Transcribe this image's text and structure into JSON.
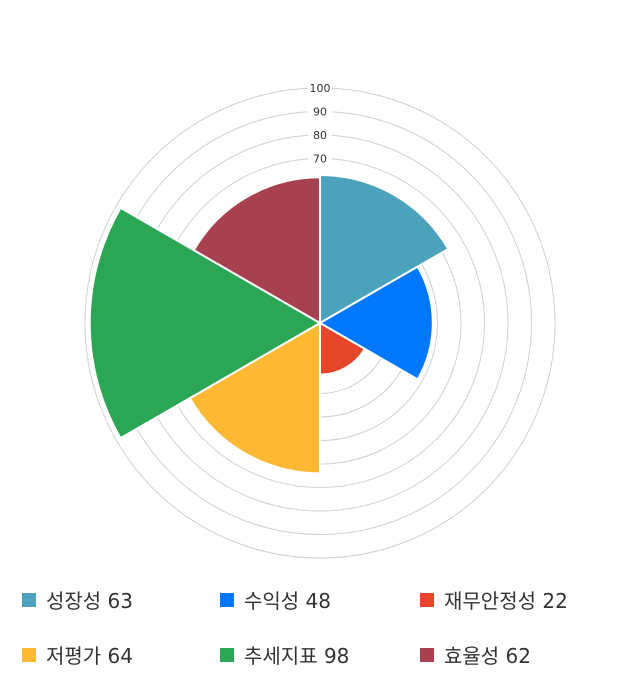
{
  "chart_data": {
    "type": "polar-area",
    "categories": [
      "성장성",
      "수익성",
      "재무안정성",
      "저평가",
      "추세지표",
      "효율성"
    ],
    "values": [
      63,
      48,
      22,
      64,
      98,
      62
    ],
    "colors": [
      "#4aa3ba",
      "#0077ff",
      "#e5462a",
      "#fdb933",
      "#2aa654",
      "#a7414f"
    ],
    "rlim": [
      0,
      100
    ],
    "ticks": [
      70,
      80,
      90,
      100
    ],
    "grid": true,
    "legend": "bottom"
  },
  "legend": [
    {
      "label": "성장성 63"
    },
    {
      "label": "수익성 48"
    },
    {
      "label": "재무안정성 22"
    },
    {
      "label": "저평가 64"
    },
    {
      "label": "추세지표 98"
    },
    {
      "label": "효율성 62"
    }
  ]
}
